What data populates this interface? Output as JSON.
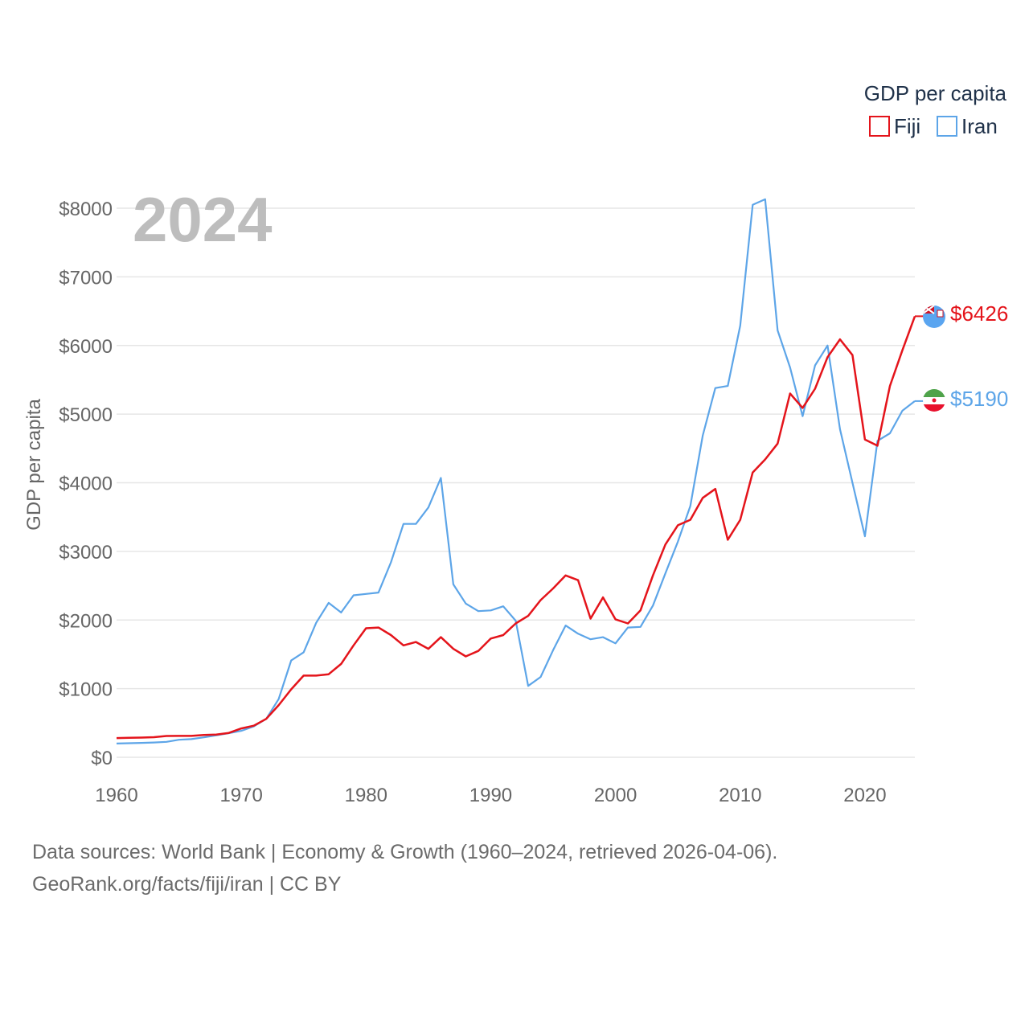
{
  "chart_data": {
    "type": "line",
    "title": "GDP per capita",
    "ylabel": "GDP per capita",
    "xlabel": "",
    "year_label": "2024",
    "xlim": [
      1960,
      2024
    ],
    "ylim": [
      0,
      8000
    ],
    "x_ticks": [
      1960,
      1970,
      1980,
      1990,
      2000,
      2010,
      2020
    ],
    "y_ticks": [
      0,
      1000,
      2000,
      3000,
      4000,
      5000,
      6000,
      7000,
      8000
    ],
    "y_tick_labels": [
      "$0",
      "$1000",
      "$2000",
      "$3000",
      "$4000",
      "$5000",
      "$6000",
      "$7000",
      "$8000"
    ],
    "legend_title": "GDP per capita",
    "legend_position": "top-right",
    "x": [
      1960,
      1961,
      1962,
      1963,
      1964,
      1965,
      1966,
      1967,
      1968,
      1969,
      1970,
      1971,
      1972,
      1973,
      1974,
      1975,
      1976,
      1977,
      1978,
      1979,
      1980,
      1981,
      1982,
      1983,
      1984,
      1985,
      1986,
      1987,
      1988,
      1989,
      1990,
      1991,
      1992,
      1993,
      1994,
      1995,
      1996,
      1997,
      1998,
      1999,
      2000,
      2001,
      2002,
      2003,
      2004,
      2005,
      2006,
      2007,
      2008,
      2009,
      2010,
      2011,
      2012,
      2013,
      2014,
      2015,
      2016,
      2017,
      2018,
      2019,
      2020,
      2021,
      2022,
      2023,
      2024
    ],
    "series": [
      {
        "name": "Fiji",
        "color": "#e4141b",
        "end_label": "$6426",
        "values": [
          280,
          283,
          287,
          293,
          310,
          312,
          312,
          325,
          330,
          355,
          420,
          460,
          560,
          760,
          990,
          1190,
          1190,
          1210,
          1360,
          1630,
          1880,
          1890,
          1780,
          1630,
          1680,
          1580,
          1750,
          1580,
          1470,
          1550,
          1730,
          1780,
          1950,
          2060,
          2290,
          2460,
          2650,
          2580,
          2020,
          2330,
          2010,
          1950,
          2140,
          2650,
          3100,
          3380,
          3460,
          3780,
          3910,
          3170,
          3460,
          4150,
          4340,
          4570,
          5300,
          5090,
          5370,
          5830,
          6090,
          5860,
          4630,
          4540,
          5410,
          5930,
          6426
        ]
      },
      {
        "name": "Iran",
        "color": "#5da5e8",
        "end_label": "$5190",
        "values": [
          200,
          205,
          210,
          215,
          225,
          255,
          265,
          290,
          320,
          350,
          385,
          450,
          560,
          850,
          1410,
          1530,
          1960,
          2250,
          2110,
          2360,
          2380,
          2400,
          2840,
          3400,
          3400,
          3640,
          4070,
          2520,
          2240,
          2130,
          2140,
          2200,
          1990,
          1040,
          1170,
          1560,
          1920,
          1800,
          1720,
          1750,
          1660,
          1890,
          1900,
          2210,
          2680,
          3140,
          3660,
          4690,
          5380,
          5410,
          6290,
          8050,
          8130,
          6220,
          5680,
          4970,
          5710,
          6000,
          4780,
          4000,
          3220,
          4610,
          4720,
          5050,
          5190
        ]
      }
    ]
  },
  "footer": {
    "line1": "Data sources: World Bank | Economy & Growth (1960–2024, retrieved 2026-04-06).",
    "line2": "GeoRank.org/facts/fiji/iran | CC BY"
  }
}
